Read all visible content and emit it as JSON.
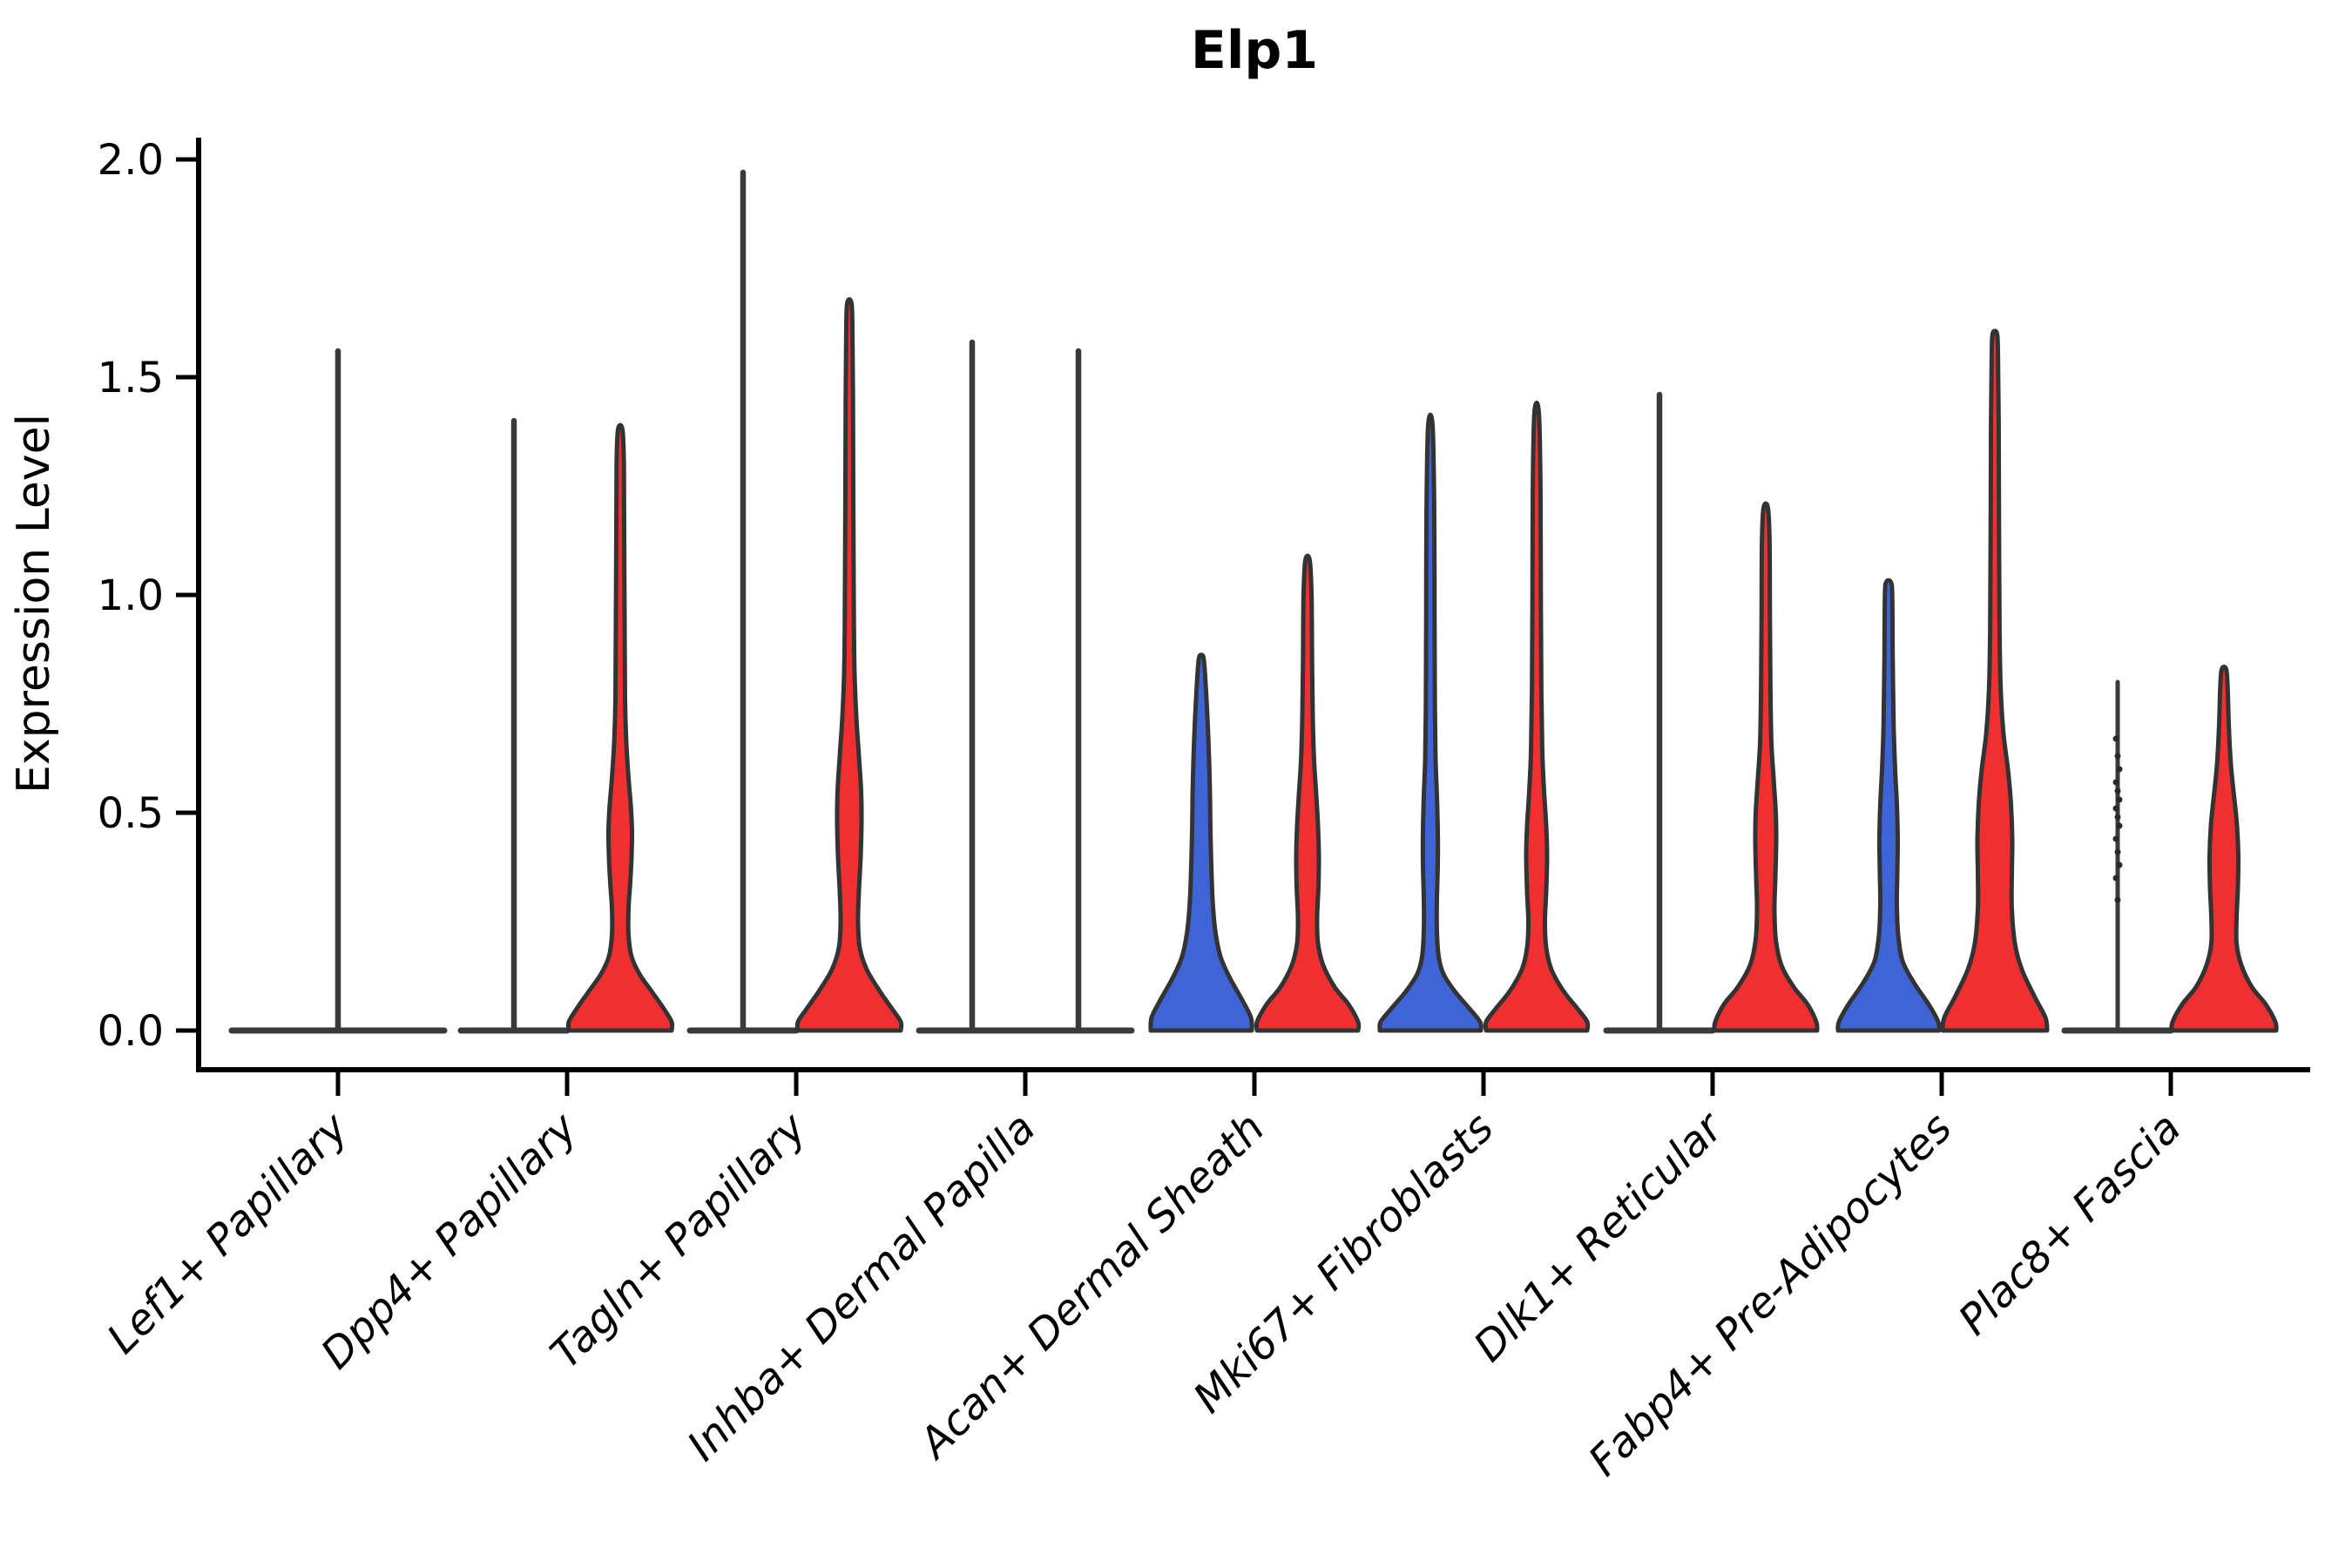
{
  "chart_data": {
    "type": "violin",
    "title": "Elp1",
    "ylabel": "Expression Level",
    "xlabel": "",
    "ylim": [
      0.0,
      2.1
    ],
    "yticks": [
      "0.0",
      "0.5",
      "1.0",
      "1.5",
      "2.0"
    ],
    "grid": false,
    "legend_position": "none",
    "split_colors": {
      "left": "#3E64D8",
      "right": "#F03030"
    },
    "outline_color": "#333333",
    "spike_color": "#3a3a3a",
    "axis_color": "#000000",
    "point_color": "#2a2a2a",
    "categories": [
      "Lef1+ Papillary",
      "Dpp4+ Papillary",
      "Tagln+ Papillary",
      "Inhba+ Dermal Papilla",
      "Acan+ Dermal Sheath",
      "Mki67+ Fibroblasts",
      "Dlk1+ Reticular",
      "Fabp4+ Pre-Adipocytes",
      "Plac8+ Fascia"
    ],
    "groups": [
      {
        "category": "Lef1+ Papillary",
        "violins": [
          {
            "slot": "center",
            "kind": "spike",
            "color": null,
            "top": 1.56,
            "foot_half": 122
          }
        ]
      },
      {
        "category": "Dpp4+ Papillary",
        "violins": [
          {
            "slot": "left",
            "kind": "spike",
            "color": null,
            "top": 1.4,
            "foot_half": 61
          },
          {
            "slot": "right",
            "kind": "violin",
            "color": "#F03030",
            "top": 1.38,
            "profile": [
              [
                0,
                59
              ],
              [
                0.02,
                59
              ],
              [
                0.05,
                50
              ],
              [
                0.09,
                36
              ],
              [
                0.13,
                22
              ],
              [
                0.17,
                13
              ],
              [
                0.22,
                9.5
              ],
              [
                0.28,
                9.5
              ],
              [
                0.34,
                11.5
              ],
              [
                0.4,
                13
              ],
              [
                0.46,
                13.5
              ],
              [
                0.52,
                12
              ],
              [
                0.58,
                9.5
              ],
              [
                0.66,
                7
              ],
              [
                0.76,
                5.5
              ],
              [
                0.95,
                5
              ],
              [
                1.15,
                4.5
              ],
              [
                1.3,
                4.2
              ],
              [
                1.38,
                2.5
              ]
            ]
          }
        ]
      },
      {
        "category": "Tagln+ Papillary",
        "violins": [
          {
            "slot": "left",
            "kind": "spike",
            "color": null,
            "top": 1.97,
            "foot_half": 61
          },
          {
            "slot": "right",
            "kind": "violin",
            "color": "#F03030",
            "top": 1.67,
            "profile": [
              [
                0,
                59
              ],
              [
                0.02,
                59
              ],
              [
                0.05,
                49
              ],
              [
                0.09,
                35
              ],
              [
                0.14,
                20
              ],
              [
                0.19,
                12
              ],
              [
                0.25,
                10
              ],
              [
                0.32,
                11
              ],
              [
                0.4,
                13
              ],
              [
                0.48,
                14
              ],
              [
                0.55,
                13.5
              ],
              [
                0.63,
                11
              ],
              [
                0.72,
                8
              ],
              [
                0.82,
                6
              ],
              [
                0.95,
                5.2
              ],
              [
                1.2,
                4.6
              ],
              [
                1.45,
                4.2
              ],
              [
                1.6,
                3.6
              ],
              [
                1.67,
                2.5
              ]
            ]
          }
        ]
      },
      {
        "category": "Inhba+ Dermal Papilla",
        "violins": [
          {
            "slot": "left",
            "kind": "spike",
            "color": null,
            "top": 1.58,
            "foot_half": 61
          },
          {
            "slot": "right",
            "kind": "spike",
            "color": null,
            "top": 1.56,
            "foot_half": 61
          }
        ]
      },
      {
        "category": "Acan+ Dermal Sheath",
        "violins": [
          {
            "slot": "left",
            "kind": "violin",
            "color": "#3E64D8",
            "top": 0.86,
            "profile": [
              [
                0,
                58
              ],
              [
                0.03,
                57
              ],
              [
                0.07,
                47
              ],
              [
                0.12,
                33
              ],
              [
                0.17,
                22
              ],
              [
                0.23,
                16
              ],
              [
                0.3,
                13
              ],
              [
                0.38,
                11.5
              ],
              [
                0.46,
                10.5
              ],
              [
                0.54,
                10
              ],
              [
                0.62,
                9
              ],
              [
                0.7,
                7.5
              ],
              [
                0.78,
                5.5
              ],
              [
                0.84,
                3.5
              ],
              [
                0.86,
                2
              ]
            ]
          },
          {
            "slot": "right",
            "kind": "violin",
            "color": "#F03030",
            "top": 1.08,
            "profile": [
              [
                0,
                58
              ],
              [
                0.02,
                58
              ],
              [
                0.06,
                47
              ],
              [
                0.1,
                31
              ],
              [
                0.15,
                18
              ],
              [
                0.2,
                12
              ],
              [
                0.26,
                11
              ],
              [
                0.33,
                12.5
              ],
              [
                0.4,
                13
              ],
              [
                0.47,
                12
              ],
              [
                0.54,
                10
              ],
              [
                0.62,
                7.5
              ],
              [
                0.72,
                6
              ],
              [
                0.85,
                5.2
              ],
              [
                1.0,
                4.6
              ],
              [
                1.08,
                2.5
              ]
            ]
          }
        ]
      },
      {
        "category": "Mki67+ Fibroblasts",
        "violins": [
          {
            "slot": "left",
            "kind": "violin",
            "color": "#3E64D8",
            "top": 1.39,
            "profile": [
              [
                0,
                58
              ],
              [
                0.02,
                57
              ],
              [
                0.05,
                45
              ],
              [
                0.09,
                28
              ],
              [
                0.13,
                15
              ],
              [
                0.17,
                9.5
              ],
              [
                0.23,
                7.5
              ],
              [
                0.3,
                7.5
              ],
              [
                0.38,
                8.5
              ],
              [
                0.46,
                8.5
              ],
              [
                0.54,
                7.5
              ],
              [
                0.62,
                6
              ],
              [
                0.74,
                5.2
              ],
              [
                0.95,
                4.8
              ],
              [
                1.2,
                4.4
              ],
              [
                1.39,
                2.5
              ]
            ]
          },
          {
            "slot": "right",
            "kind": "violin",
            "color": "#F03030",
            "top": 1.42,
            "profile": [
              [
                0,
                58
              ],
              [
                0.02,
                58
              ],
              [
                0.05,
                47
              ],
              [
                0.09,
                31
              ],
              [
                0.14,
                17
              ],
              [
                0.19,
                11
              ],
              [
                0.25,
                9.5
              ],
              [
                0.32,
                11
              ],
              [
                0.4,
                12
              ],
              [
                0.47,
                11
              ],
              [
                0.55,
                8.5
              ],
              [
                0.64,
                6.5
              ],
              [
                0.78,
                5.4
              ],
              [
                1.0,
                4.8
              ],
              [
                1.25,
                4.4
              ],
              [
                1.42,
                2.5
              ]
            ]
          }
        ]
      },
      {
        "category": "Dlk1+ Reticular",
        "violins": [
          {
            "slot": "left",
            "kind": "spike",
            "color": null,
            "top": 1.46,
            "foot_half": 61
          },
          {
            "slot": "right",
            "kind": "violin",
            "color": "#F03030",
            "top": 1.2,
            "profile": [
              [
                0,
                59
              ],
              [
                0.02,
                58
              ],
              [
                0.06,
                48
              ],
              [
                0.1,
                32
              ],
              [
                0.15,
                18
              ],
              [
                0.21,
                11.5
              ],
              [
                0.28,
                10
              ],
              [
                0.35,
                11
              ],
              [
                0.43,
                12
              ],
              [
                0.5,
                11.5
              ],
              [
                0.58,
                9
              ],
              [
                0.66,
                6.5
              ],
              [
                0.78,
                5.4
              ],
              [
                0.95,
                4.8
              ],
              [
                1.12,
                4.4
              ],
              [
                1.2,
                2.5
              ]
            ]
          }
        ]
      },
      {
        "category": "Fabp4+ Pre-Adipocytes",
        "violins": [
          {
            "slot": "left",
            "kind": "violin",
            "color": "#3E64D8",
            "top": 1.03,
            "profile": [
              [
                0,
                58
              ],
              [
                0.02,
                57
              ],
              [
                0.06,
                46
              ],
              [
                0.11,
                29
              ],
              [
                0.16,
                16
              ],
              [
                0.22,
                11
              ],
              [
                0.29,
                9.5
              ],
              [
                0.36,
                10
              ],
              [
                0.44,
                10.5
              ],
              [
                0.52,
                9.5
              ],
              [
                0.6,
                7.5
              ],
              [
                0.7,
                5.8
              ],
              [
                0.85,
                4.8
              ],
              [
                1.0,
                4.2
              ],
              [
                1.03,
                2.5
              ]
            ]
          },
          {
            "slot": "right",
            "kind": "violin",
            "color": "#F03030",
            "top": 1.6,
            "profile": [
              [
                0,
                60
              ],
              [
                0.03,
                58
              ],
              [
                0.08,
                45
              ],
              [
                0.14,
                31
              ],
              [
                0.2,
                23
              ],
              [
                0.28,
                19.5
              ],
              [
                0.36,
                19.5
              ],
              [
                0.44,
                20
              ],
              [
                0.52,
                18.5
              ],
              [
                0.6,
                15
              ],
              [
                0.68,
                10
              ],
              [
                0.78,
                6.8
              ],
              [
                0.92,
                5.4
              ],
              [
                1.15,
                4.8
              ],
              [
                1.4,
                4.4
              ],
              [
                1.55,
                3.6
              ],
              [
                1.6,
                2.5
              ]
            ]
          }
        ]
      },
      {
        "category": "Plac8+ Fascia",
        "violins": [
          {
            "slot": "left",
            "kind": "points",
            "color": null,
            "top": 0.8,
            "foot_half": 61,
            "points": [
              0.67,
              0.63,
              0.6,
              0.57,
              0.55,
              0.53,
              0.51,
              0.49,
              0.47,
              0.44,
              0.41,
              0.38,
              0.35,
              0.3
            ]
          },
          {
            "slot": "right",
            "kind": "violin",
            "color": "#F03030",
            "top": 0.83,
            "profile": [
              [
                0,
                60
              ],
              [
                0.02,
                59
              ],
              [
                0.06,
                48
              ],
              [
                0.1,
                32
              ],
              [
                0.15,
                20
              ],
              [
                0.2,
                14.5
              ],
              [
                0.26,
                14.5
              ],
              [
                0.33,
                16
              ],
              [
                0.4,
                16.5
              ],
              [
                0.47,
                15
              ],
              [
                0.54,
                11.5
              ],
              [
                0.61,
                8
              ],
              [
                0.7,
                5.6
              ],
              [
                0.79,
                4.2
              ],
              [
                0.83,
                2.5
              ]
            ]
          }
        ]
      }
    ]
  }
}
